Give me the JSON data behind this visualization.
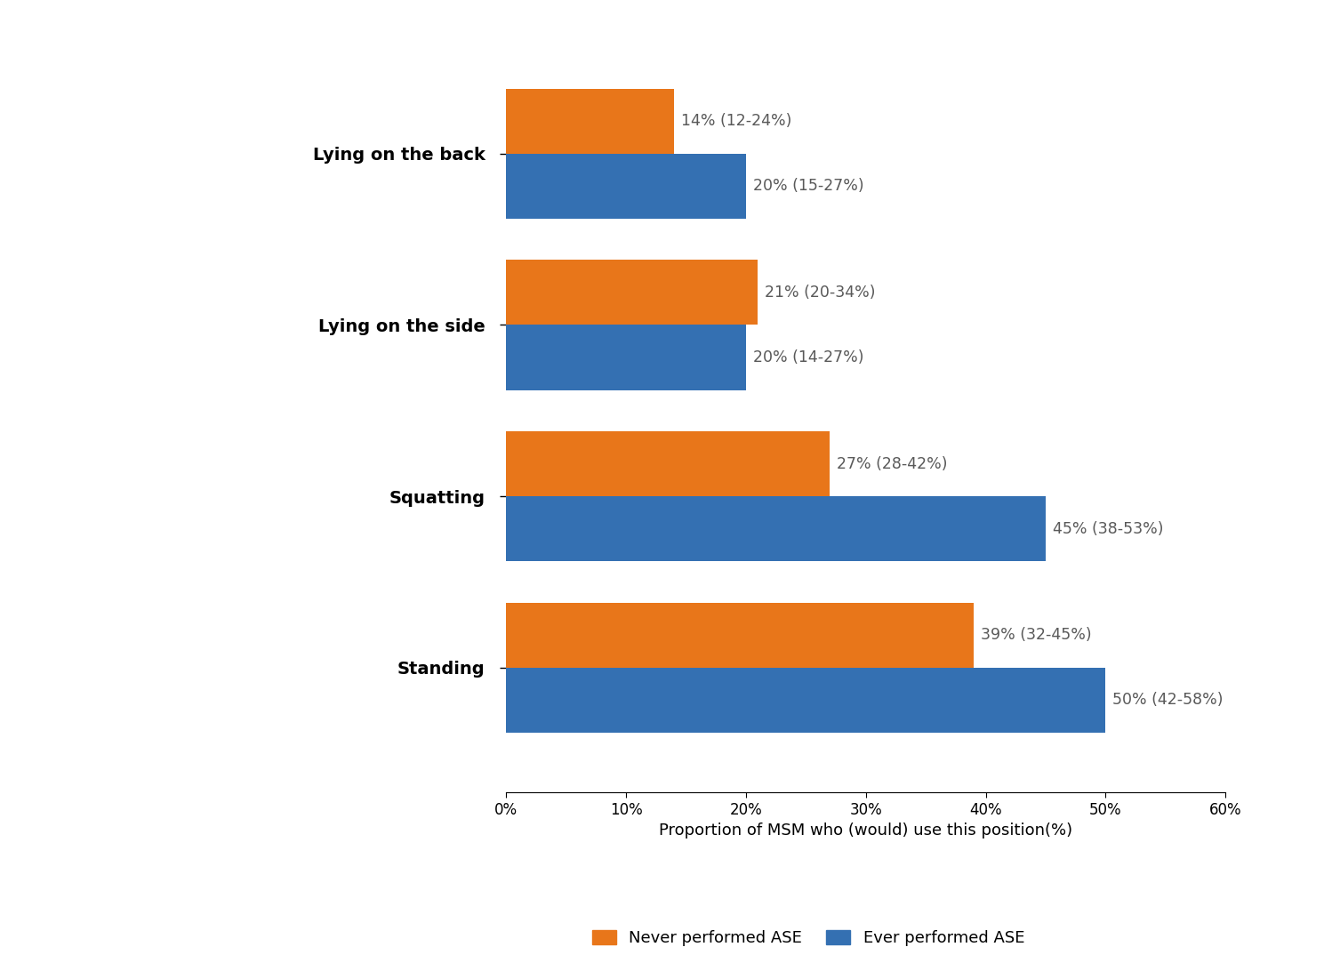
{
  "categories": [
    "Lying on the back",
    "Lying on the side",
    "Squatting",
    "Standing"
  ],
  "never_values": [
    14,
    21,
    27,
    39
  ],
  "ever_values": [
    20,
    20,
    45,
    50
  ],
  "never_labels": [
    "14% (12-24%)",
    "21% (20-34%)",
    "27% (28-42%)",
    "39% (32-45%)"
  ],
  "ever_labels": [
    "20% (15-27%)",
    "20% (14-27%)",
    "45% (38-53%)",
    "50% (42-58%)"
  ],
  "never_color": "#E8761A",
  "ever_color": "#3470B2",
  "xlabel": "Proportion of MSM who (would) use this position(%)",
  "xlim": [
    0,
    60
  ],
  "xticks": [
    0,
    10,
    20,
    30,
    40,
    50,
    60
  ],
  "xtick_labels": [
    "0%",
    "10%",
    "20%",
    "30%",
    "40%",
    "50%",
    "60%"
  ],
  "legend_never": "Never performed ASE",
  "legend_ever": "Ever performed ASE",
  "bar_height": 0.38,
  "label_fontsize": 12.5,
  "tick_fontsize": 12,
  "xlabel_fontsize": 13,
  "legend_fontsize": 13,
  "category_fontsize": 14,
  "text_color": "#595959",
  "category_fontweight": "bold"
}
